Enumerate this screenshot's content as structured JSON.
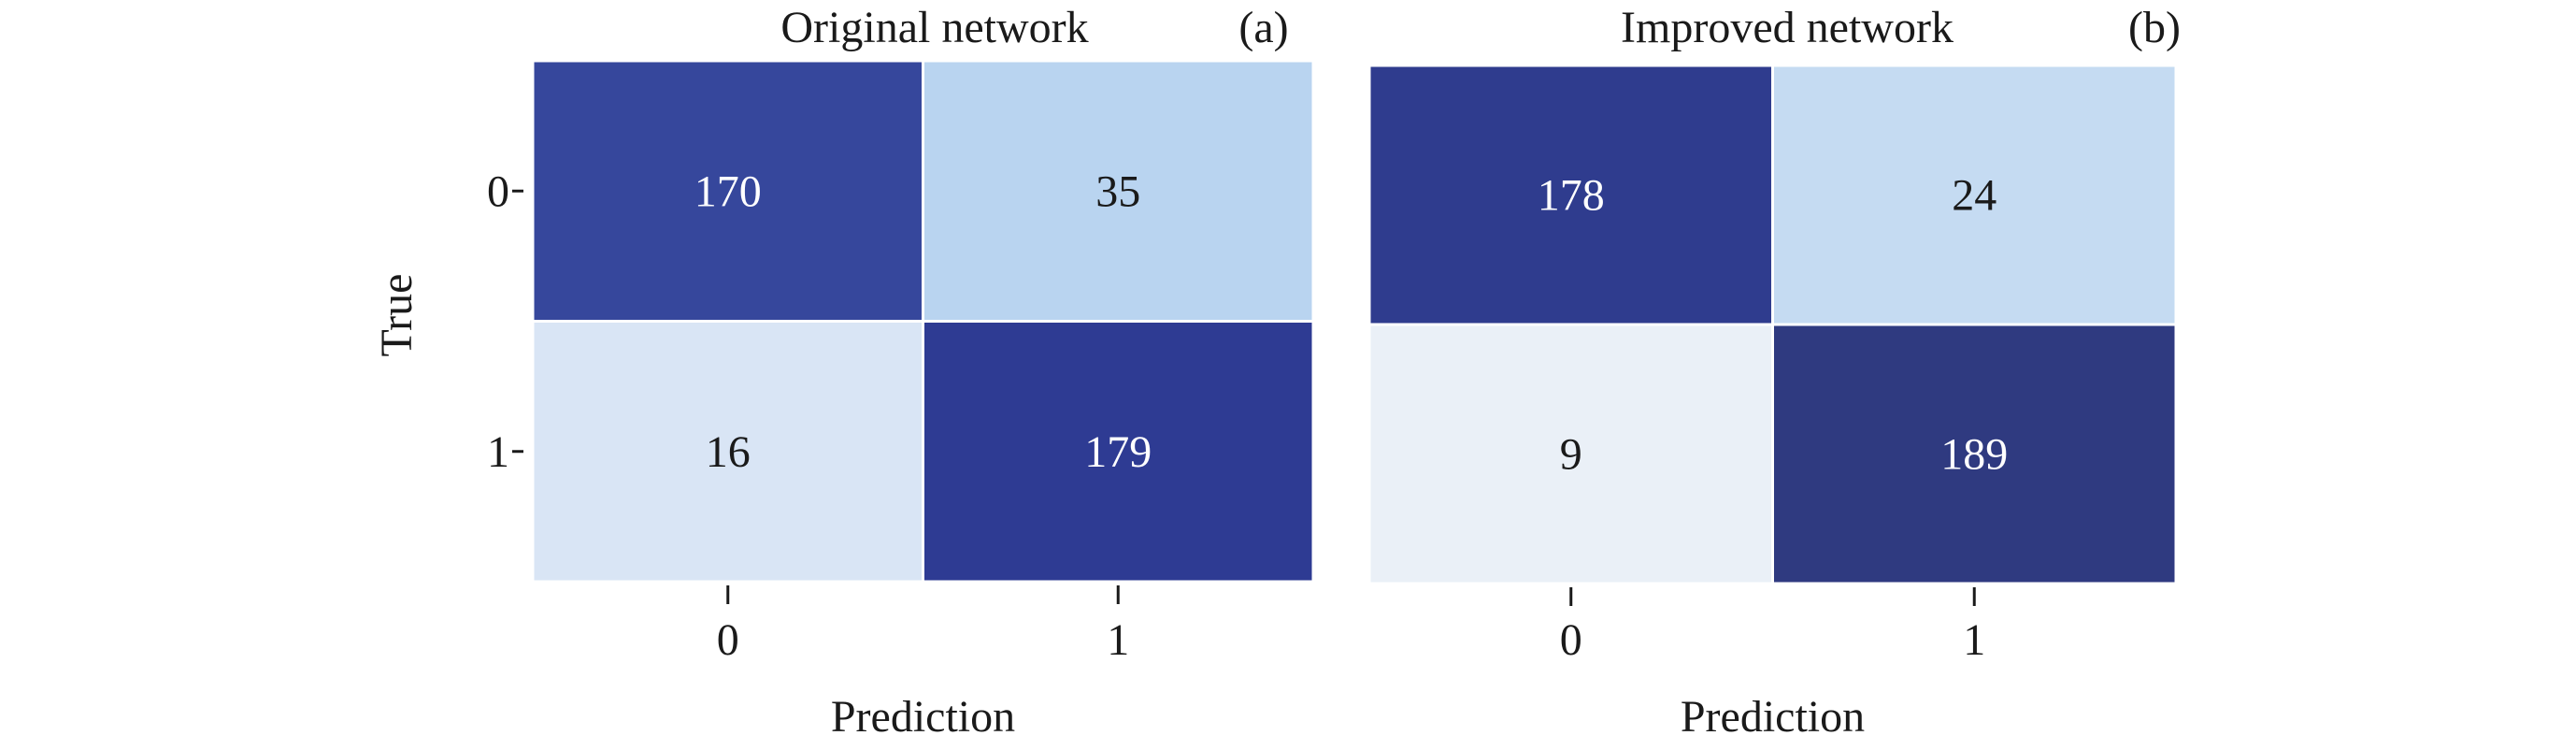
{
  "chart_data": [
    {
      "type": "heatmap",
      "title": "Original network",
      "panel_tag": "(a)",
      "xlabel": "Prediction",
      "ylabel": "True",
      "x_categories": [
        "0",
        "1"
      ],
      "y_categories": [
        "0",
        "1"
      ],
      "values": [
        [
          170,
          35
        ],
        [
          16,
          179
        ]
      ],
      "colors": [
        [
          "#36479c",
          "#b9d4f0"
        ],
        [
          "#d9e5f5",
          "#2e3b93"
        ]
      ],
      "colorbar": false
    },
    {
      "type": "heatmap",
      "title": "Improved network",
      "panel_tag": "(b)",
      "xlabel": "Prediction",
      "ylabel": "",
      "x_categories": [
        "0",
        "1"
      ],
      "y_categories": [
        "0",
        "1"
      ],
      "values": [
        [
          178,
          24
        ],
        [
          9,
          189
        ]
      ],
      "colors": [
        [
          "#2f3c8e",
          "#c5dbf2"
        ],
        [
          "#eaf0f7",
          "#2f3a80"
        ]
      ],
      "colorbar": false
    }
  ]
}
